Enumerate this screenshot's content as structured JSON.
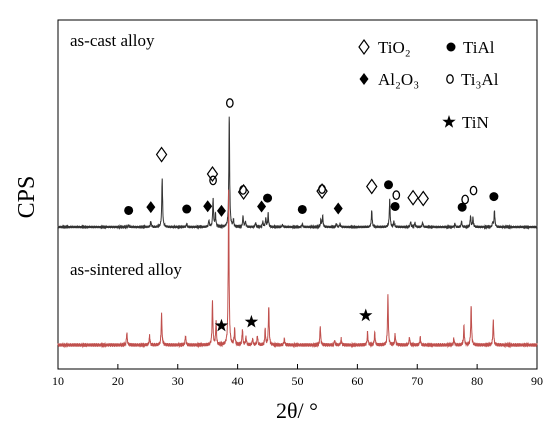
{
  "chart_data": {
    "type": "line",
    "xlabel": "2θ/ °",
    "ylabel": "CPS",
    "xlim": [
      10,
      90
    ],
    "xticks": [
      10,
      20,
      30,
      40,
      50,
      60,
      70,
      80,
      90
    ],
    "y_ticks_shown": false,
    "grid": false,
    "legend_position": "top-right",
    "legend": [
      {
        "marker": "open-diamond",
        "label": "TiO₂"
      },
      {
        "marker": "filled-circle",
        "label": "TiAl"
      },
      {
        "marker": "filled-diamond",
        "label": "Al₂O₃"
      },
      {
        "marker": "open-circle",
        "label": "Ti₃Al"
      },
      {
        "marker": "star",
        "label": "TiN"
      }
    ],
    "series": [
      {
        "name": "as-cast alloy",
        "color": "#333333",
        "baseline": 0.06,
        "peaks": [
          [
            21.8,
            0.02
          ],
          [
            25.5,
            0.05
          ],
          [
            27.4,
            0.45
          ],
          [
            31.5,
            0.03
          ],
          [
            35.2,
            0.06
          ],
          [
            35.9,
            0.26
          ],
          [
            36.3,
            0.12
          ],
          [
            38.6,
            1.0
          ],
          [
            39.3,
            0.06
          ],
          [
            40.9,
            0.1
          ],
          [
            41.3,
            0.05
          ],
          [
            43.0,
            0.04
          ],
          [
            44.2,
            0.05
          ],
          [
            44.7,
            0.08
          ],
          [
            45.1,
            0.12
          ],
          [
            47.5,
            0.02
          ],
          [
            50.8,
            0.03
          ],
          [
            53.9,
            0.06
          ],
          [
            54.2,
            0.1
          ],
          [
            56.5,
            0.03
          ],
          [
            57.1,
            0.03
          ],
          [
            62.4,
            0.15
          ],
          [
            65.4,
            0.25
          ],
          [
            66.1,
            0.05
          ],
          [
            68.9,
            0.05
          ],
          [
            69.6,
            0.04
          ],
          [
            70.9,
            0.04
          ],
          [
            76.3,
            0.03
          ],
          [
            77.4,
            0.05
          ],
          [
            78.9,
            0.1
          ],
          [
            79.3,
            0.08
          ],
          [
            82.6,
            0.04
          ],
          [
            82.9,
            0.15
          ]
        ]
      },
      {
        "name": "as-sintered alloy",
        "color": "#c0504d",
        "baseline": 0.04,
        "peaks": [
          [
            21.5,
            0.08
          ],
          [
            25.3,
            0.06
          ],
          [
            27.3,
            0.2
          ],
          [
            31.3,
            0.06
          ],
          [
            35.8,
            0.28
          ],
          [
            36.4,
            0.15
          ],
          [
            38.5,
            1.0
          ],
          [
            39.5,
            0.1
          ],
          [
            40.8,
            0.1
          ],
          [
            41.4,
            0.05
          ],
          [
            42.5,
            0.04
          ],
          [
            43.3,
            0.06
          ],
          [
            44.6,
            0.1
          ],
          [
            45.2,
            0.25
          ],
          [
            47.8,
            0.04
          ],
          [
            53.8,
            0.12
          ],
          [
            56.2,
            0.03
          ],
          [
            57.3,
            0.04
          ],
          [
            61.7,
            0.08
          ],
          [
            62.9,
            0.08
          ],
          [
            65.1,
            0.32
          ],
          [
            66.3,
            0.07
          ],
          [
            68.7,
            0.05
          ],
          [
            70.5,
            0.05
          ],
          [
            76.1,
            0.04
          ],
          [
            77.8,
            0.12
          ],
          [
            79.0,
            0.25
          ],
          [
            82.7,
            0.16
          ]
        ]
      }
    ],
    "phase_markers": [
      {
        "series": "as-cast alloy",
        "marker": "filled-circle",
        "x": [
          21.8,
          31.5,
          45.0,
          50.8,
          65.2,
          66.3,
          77.5,
          82.8
        ]
      },
      {
        "series": "as-cast alloy",
        "marker": "filled-diamond",
        "x": [
          25.5,
          35.0,
          37.3,
          44.0,
          56.8
        ]
      },
      {
        "series": "as-cast alloy",
        "marker": "open-diamond",
        "x": [
          27.3,
          35.8,
          41.0,
          54.1,
          62.4,
          69.3,
          71.0
        ]
      },
      {
        "series": "as-cast alloy",
        "marker": "open-circle",
        "x": [
          35.9,
          38.7,
          40.9,
          54.1,
          66.5,
          78.0,
          79.4
        ]
      },
      {
        "series": "as-sintered alloy",
        "marker": "star",
        "x": [
          37.3,
          42.3,
          61.4
        ]
      }
    ]
  }
}
